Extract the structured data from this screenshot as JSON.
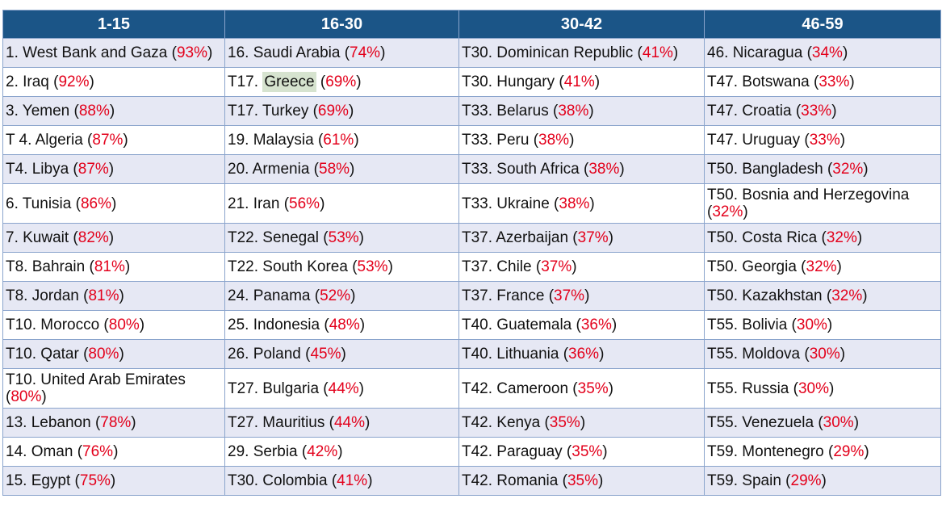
{
  "table": {
    "header": [
      "1-15",
      "16-30",
      "30-42",
      "46-59"
    ],
    "rows": [
      [
        [
          "1. West Bank and Gaza (",
          {
            "text": "93%",
            "color": "#e3001b"
          },
          ")"
        ],
        [
          "16. Saudi Arabia (",
          {
            "text": "74%",
            "color": "#e3001b"
          },
          ")"
        ],
        [
          "T30. Dominican Republic (",
          {
            "text": "41%",
            "color": "#e3001b"
          },
          ")"
        ],
        [
          "46. Nicaragua (",
          {
            "text": "34%",
            "color": "#e3001b"
          },
          ")"
        ]
      ],
      [
        [
          "2. Iraq (",
          {
            "text": "92%",
            "color": "#e3001b"
          },
          ")"
        ],
        [
          "T17. ",
          {
            "text": "Greece",
            "background": "#d6e3cf"
          },
          " (",
          {
            "text": "69%",
            "color": "#e3001b"
          },
          ")"
        ],
        [
          "T30. Hungary (",
          {
            "text": "41%",
            "color": "#e3001b"
          },
          ")"
        ],
        [
          "T47. Botswana (",
          {
            "text": "33%",
            "color": "#e3001b"
          },
          ")"
        ]
      ],
      [
        [
          "3. Yemen (",
          {
            "text": "88%",
            "color": "#e3001b"
          },
          ")"
        ],
        [
          "T17. Turkey (",
          {
            "text": "69%",
            "color": "#e3001b"
          },
          ")"
        ],
        [
          "T33. Belarus (",
          {
            "text": "38%",
            "color": "#e3001b"
          },
          ")"
        ],
        [
          "T47. Croatia (",
          {
            "text": "33%",
            "color": "#e3001b"
          },
          ")"
        ]
      ],
      [
        [
          "T 4. Algeria (",
          {
            "text": "87%",
            "color": "#e3001b"
          },
          ")"
        ],
        [
          "19. Malaysia (",
          {
            "text": "61%",
            "color": "#e3001b"
          },
          ")"
        ],
        [
          "T33. Peru (",
          {
            "text": "38%",
            "color": "#e3001b"
          },
          ")"
        ],
        [
          "T47. Uruguay (",
          {
            "text": "33%",
            "color": "#e3001b"
          },
          ")"
        ]
      ],
      [
        [
          "T4. Libya (",
          {
            "text": "87%",
            "color": "#e3001b"
          },
          ")"
        ],
        [
          "20. Armenia (",
          {
            "text": "58%",
            "color": "#e3001b"
          },
          ")"
        ],
        [
          "T33. South Africa (",
          {
            "text": "38%",
            "color": "#e3001b"
          },
          ")"
        ],
        [
          "T50. Bangladesh (",
          {
            "text": "32%",
            "color": "#e3001b"
          },
          ")"
        ]
      ],
      [
        [
          "6. Tunisia (",
          {
            "text": "86%",
            "color": "#e3001b"
          },
          ")"
        ],
        [
          "21. Iran (",
          {
            "text": "56%",
            "color": "#e3001b"
          },
          ")"
        ],
        [
          "T33. Ukraine (",
          {
            "text": "38%",
            "color": "#e3001b"
          },
          ")"
        ],
        [
          "T50. Bosnia and Herzegovina (",
          {
            "text": "32%",
            "color": "#e3001b"
          },
          ")"
        ]
      ],
      [
        [
          "7. Kuwait (",
          {
            "text": "82%",
            "color": "#e3001b"
          },
          ")"
        ],
        [
          "T22. Senegal (",
          {
            "text": "53%",
            "color": "#e3001b"
          },
          ")"
        ],
        [
          "T37. Azerbaijan (",
          {
            "text": "37%",
            "color": "#e3001b"
          },
          ")"
        ],
        [
          "T50. Costa Rica (",
          {
            "text": "32%",
            "color": "#e3001b"
          },
          ")"
        ]
      ],
      [
        [
          "T8. Bahrain (",
          {
            "text": "81%",
            "color": "#e3001b"
          },
          ")"
        ],
        [
          "T22. South Korea (",
          {
            "text": "53%",
            "color": "#e3001b"
          },
          ")"
        ],
        [
          "T37. Chile (",
          {
            "text": "37%",
            "color": "#e3001b"
          },
          ")"
        ],
        [
          "T50. Georgia (",
          {
            "text": "32%",
            "color": "#e3001b"
          },
          ")"
        ]
      ],
      [
        [
          "T8. Jordan (",
          {
            "text": "81%",
            "color": "#e3001b"
          },
          ")"
        ],
        [
          "24. Panama (",
          {
            "text": "52%",
            "color": "#e3001b"
          },
          ")"
        ],
        [
          "T37. France (",
          {
            "text": "37%",
            "color": "#e3001b"
          },
          ")"
        ],
        [
          "T50. Kazakhstan (",
          {
            "text": "32%",
            "color": "#e3001b"
          },
          ")"
        ]
      ],
      [
        [
          "T10. Morocco (",
          {
            "text": "80%",
            "color": "#e3001b"
          },
          ")"
        ],
        [
          "25. Indonesia (",
          {
            "text": "48%",
            "color": "#e3001b"
          },
          ")"
        ],
        [
          "T40. Guatemala (",
          {
            "text": "36%",
            "color": "#e3001b"
          },
          ")"
        ],
        [
          "T55. Bolivia (",
          {
            "text": "30%",
            "color": "#e3001b"
          },
          ")"
        ]
      ],
      [
        [
          "T10. Qatar (",
          {
            "text": "80%",
            "color": "#e3001b"
          },
          ")"
        ],
        [
          "26. Poland (",
          {
            "text": "45%",
            "color": "#e3001b"
          },
          ")"
        ],
        [
          "T40. Lithuania (",
          {
            "text": "36%",
            "color": "#e3001b"
          },
          ")"
        ],
        [
          "T55. Moldova (",
          {
            "text": "30%",
            "color": "#e3001b"
          },
          ")"
        ]
      ],
      [
        [
          "T10. United Arab Emirates (",
          {
            "text": "80%",
            "color": "#e3001b"
          },
          ")"
        ],
        [
          "T27. Bulgaria (",
          {
            "text": "44%",
            "color": "#e3001b"
          },
          ")"
        ],
        [
          "T42. Cameroon (",
          {
            "text": "35%",
            "color": "#e3001b"
          },
          ")"
        ],
        [
          "T55. Russia (",
          {
            "text": "30%",
            "color": "#e3001b"
          },
          ")"
        ]
      ],
      [
        [
          "13. Lebanon (",
          {
            "text": "78%",
            "color": "#e3001b"
          },
          ")"
        ],
        [
          "T27. Mauritius (",
          {
            "text": "44%",
            "color": "#e3001b"
          },
          ")"
        ],
        [
          "T42. Kenya (",
          {
            "text": "35%",
            "color": "#e3001b"
          },
          ")"
        ],
        [
          "T55. Venezuela (",
          {
            "text": "30%",
            "color": "#e3001b"
          },
          ")"
        ]
      ],
      [
        [
          "14. Oman (",
          {
            "text": "76%",
            "color": "#e3001b"
          },
          ")"
        ],
        [
          "29. Serbia (",
          {
            "text": "42%",
            "color": "#e3001b"
          },
          ")"
        ],
        [
          "T42. Paraguay (",
          {
            "text": "35%",
            "color": "#e3001b"
          },
          ")"
        ],
        [
          "T59. Montenegro (",
          {
            "text": "29%",
            "color": "#e3001b"
          },
          ")"
        ]
      ],
      [
        [
          "15. Egypt (",
          {
            "text": "75%",
            "color": "#e3001b"
          },
          ")"
        ],
        [
          "T30. Colombia (",
          {
            "text": "41%",
            "color": "#e3001b"
          },
          ")"
        ],
        [
          "T42. Romania (",
          {
            "text": "35%",
            "color": "#e3001b"
          },
          ")"
        ],
        [
          "T59. Spain (",
          {
            "text": "29%",
            "color": "#e3001b"
          },
          ")"
        ]
      ]
    ]
  }
}
